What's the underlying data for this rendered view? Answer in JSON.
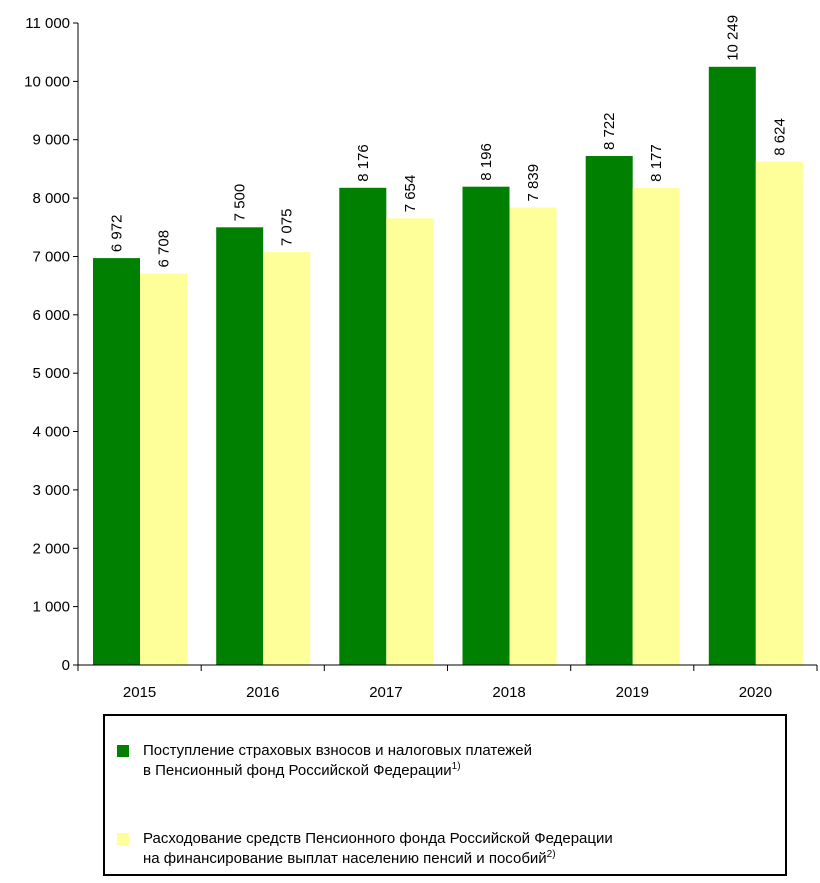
{
  "chart_data": {
    "type": "bar",
    "categories": [
      "2015",
      "2016",
      "2017",
      "2018",
      "2019",
      "2020"
    ],
    "series": [
      {
        "name": "Поступление страховых взносов и налоговых платежей в Пенсионный фонд Российской Федерации 1)",
        "values": [
          6972,
          7500,
          8176,
          8196,
          8722,
          10249
        ],
        "value_labels": [
          "6 972",
          "7 500",
          "8 176",
          "8 196",
          "8 722",
          "10 249"
        ],
        "color": "#008000"
      },
      {
        "name": "Расходование средств Пенсионного фонда Российской Федерации на финансирование выплат населению пенсий и пособий 2)",
        "values": [
          6708,
          7075,
          7654,
          7839,
          8177,
          8624
        ],
        "value_labels": [
          "6 708",
          "7 075",
          "7 654",
          "7 839",
          "8 177",
          "8 624"
        ],
        "color": "#FFFF99"
      }
    ],
    "ylim": [
      0,
      11000
    ],
    "yticks": [
      0,
      1000,
      2000,
      3000,
      4000,
      5000,
      6000,
      7000,
      8000,
      9000,
      10000,
      11000
    ],
    "ytick_labels": [
      "0",
      "1 000",
      "2 000",
      "3 000",
      "4 000",
      "5 000",
      "6 000",
      "7 000",
      "8 000",
      "9 000",
      "10 000",
      "11 000"
    ],
    "grid": false,
    "legend_position": "bottom"
  },
  "legend": {
    "item1": {
      "line1": "Поступление страховых взносов и налоговых платежей",
      "line2": "в Пенсионный фонд Российской Федерации",
      "note": "1)"
    },
    "item2": {
      "line1": "Расходование средств Пенсионного фонда Российской Федерации",
      "line2": "на финансирование выплат населению пенсий и пособий",
      "note": "2)"
    }
  }
}
